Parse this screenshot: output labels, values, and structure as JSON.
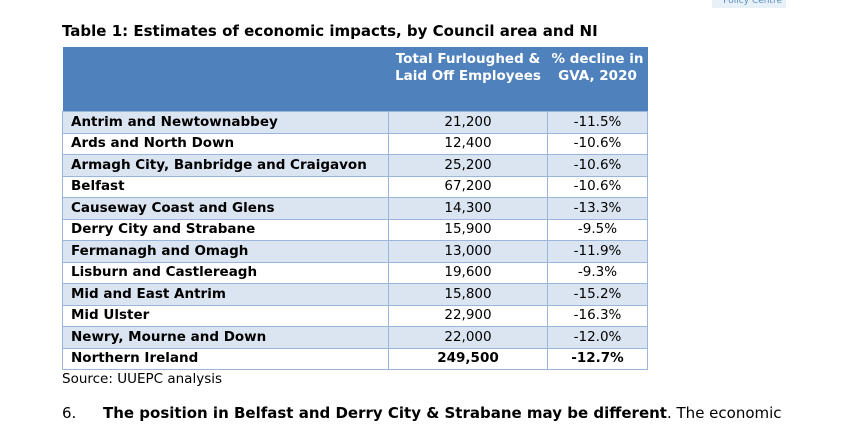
{
  "logo": "Policy Centre",
  "title": "Table 1: Estimates of economic impacts, by Council area and NI",
  "table": {
    "headers": [
      "",
      "Total Furloughed & Laid Off Employees",
      "% decline in GVA, 2020"
    ],
    "rows": [
      [
        "Antrim and Newtownabbey",
        "21,200",
        "-11.5%"
      ],
      [
        "Ards and North Down",
        "12,400",
        "-10.6%"
      ],
      [
        "Armagh City, Banbridge and Craigavon",
        "25,200",
        "-10.6%"
      ],
      [
        "Belfast",
        "67,200",
        "-10.6%"
      ],
      [
        "Causeway Coast and Glens",
        "14,300",
        "-13.3%"
      ],
      [
        "Derry City and Strabane",
        "15,900",
        "-9.5%"
      ],
      [
        "Fermanagh and Omagh",
        "13,000",
        "-11.9%"
      ],
      [
        "Lisburn and Castlereagh",
        "19,600",
        "-9.3%"
      ],
      [
        "Mid and East Antrim",
        "15,800",
        "-15.2%"
      ],
      [
        "Mid Ulster",
        "22,900",
        "-16.3%"
      ],
      [
        "Newry, Mourne and Down",
        "22,000",
        "-12.0%"
      ],
      [
        "Northern Ireland",
        "249,500",
        "-12.7%"
      ]
    ]
  },
  "source": "Source: UUEPC analysis",
  "paragraph": {
    "number": "6.",
    "bold": "The position in Belfast and Derry City & Strabane may be different",
    "text": ". The economic"
  }
}
